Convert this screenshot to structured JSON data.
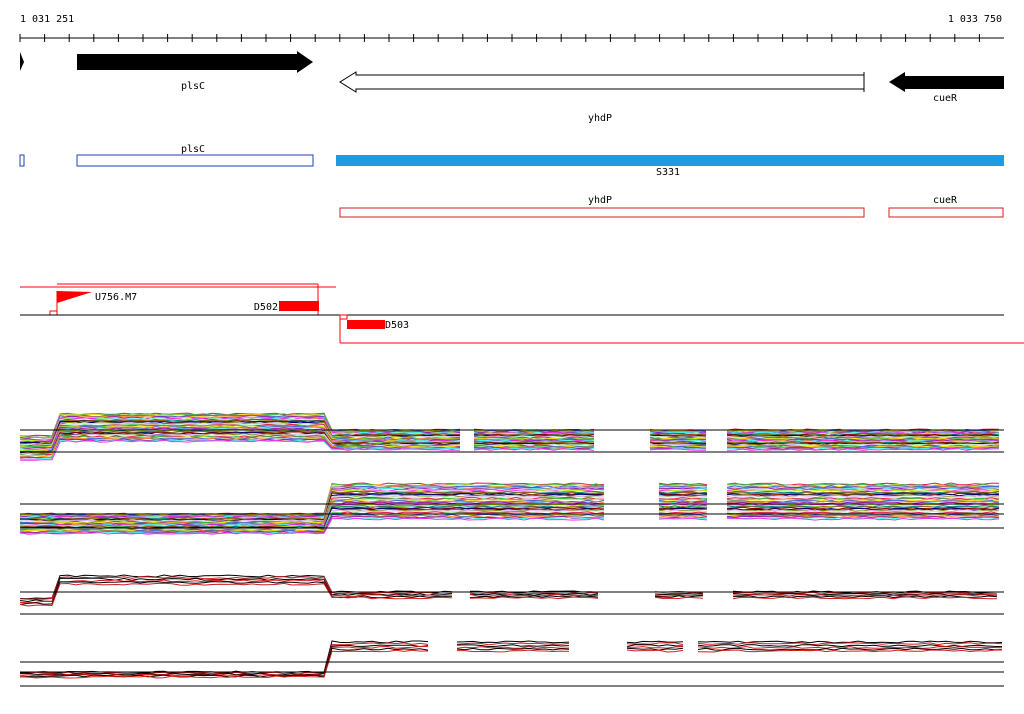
{
  "ruler": {
    "start_label": "1 031 251",
    "end_label": "1 033 750"
  },
  "genes": [
    {
      "name": "plsC",
      "strand": "+",
      "style": "filled"
    },
    {
      "name": "yhdP",
      "strand": "-",
      "style": "outline"
    },
    {
      "name": "cueR",
      "strand": "-",
      "style": "filled"
    }
  ],
  "annotations": {
    "plsC": "plsC",
    "segment": "S331",
    "yhdP": "yhdP",
    "cueR": "cueR"
  },
  "features": {
    "peak": "U756.M7",
    "d502": "D502",
    "d503": "D503"
  },
  "colors": {
    "gene_fill": "#000000",
    "segment_blue": "#1e9be6",
    "outline_blue": "#1f3fb4",
    "outline_red": "#d21e1e",
    "feature_red": "#ff0000"
  },
  "expression_panels": [
    {
      "id": "panel-1",
      "style": "multicolor-profiles",
      "shape": "high-then-low"
    },
    {
      "id": "panel-2",
      "style": "multicolor-profiles",
      "shape": "low-then-high"
    },
    {
      "id": "panel-3",
      "style": "black-red-profiles",
      "shape": "high-then-low"
    },
    {
      "id": "panel-4",
      "style": "black-red-profiles",
      "shape": "low-then-high"
    }
  ]
}
